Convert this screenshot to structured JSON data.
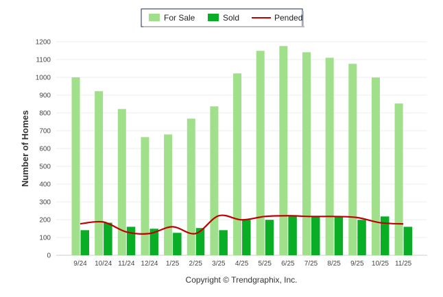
{
  "chart_data": {
    "type": "bar",
    "title": "",
    "xlabel": "",
    "ylabel": "Number of Homes",
    "ylim": [
      0,
      1200
    ],
    "yticks": [
      0,
      100,
      200,
      300,
      400,
      500,
      600,
      700,
      800,
      900,
      1000,
      1100,
      1200
    ],
    "grid": true,
    "legend_placement": "top-center",
    "categories": [
      "9/24",
      "10/24",
      "11/24",
      "12/24",
      "1/25",
      "2/25",
      "3/25",
      "4/25",
      "5/25",
      "6/25",
      "7/25",
      "8/25",
      "9/25",
      "10/25",
      "11/25"
    ],
    "series": [
      {
        "name": "For Sale",
        "type": "bar",
        "color": "#a0e08a",
        "values": [
          1000,
          922,
          822,
          664,
          679,
          768,
          837,
          1022,
          1149,
          1176,
          1141,
          1110,
          1076,
          999,
          853
        ]
      },
      {
        "name": "Sold",
        "type": "bar",
        "color": "#0aad26",
        "values": [
          141,
          183,
          160,
          149,
          126,
          153,
          141,
          199,
          199,
          222,
          218,
          218,
          199,
          218,
          160
        ]
      },
      {
        "name": "Pended",
        "type": "line",
        "color": "#c00000",
        "values": [
          177,
          187,
          131,
          122,
          160,
          122,
          222,
          199,
          218,
          222,
          218,
          218,
          212,
          183,
          176
        ]
      }
    ]
  },
  "copyright": "Copyright © Trendgraphix, Inc."
}
